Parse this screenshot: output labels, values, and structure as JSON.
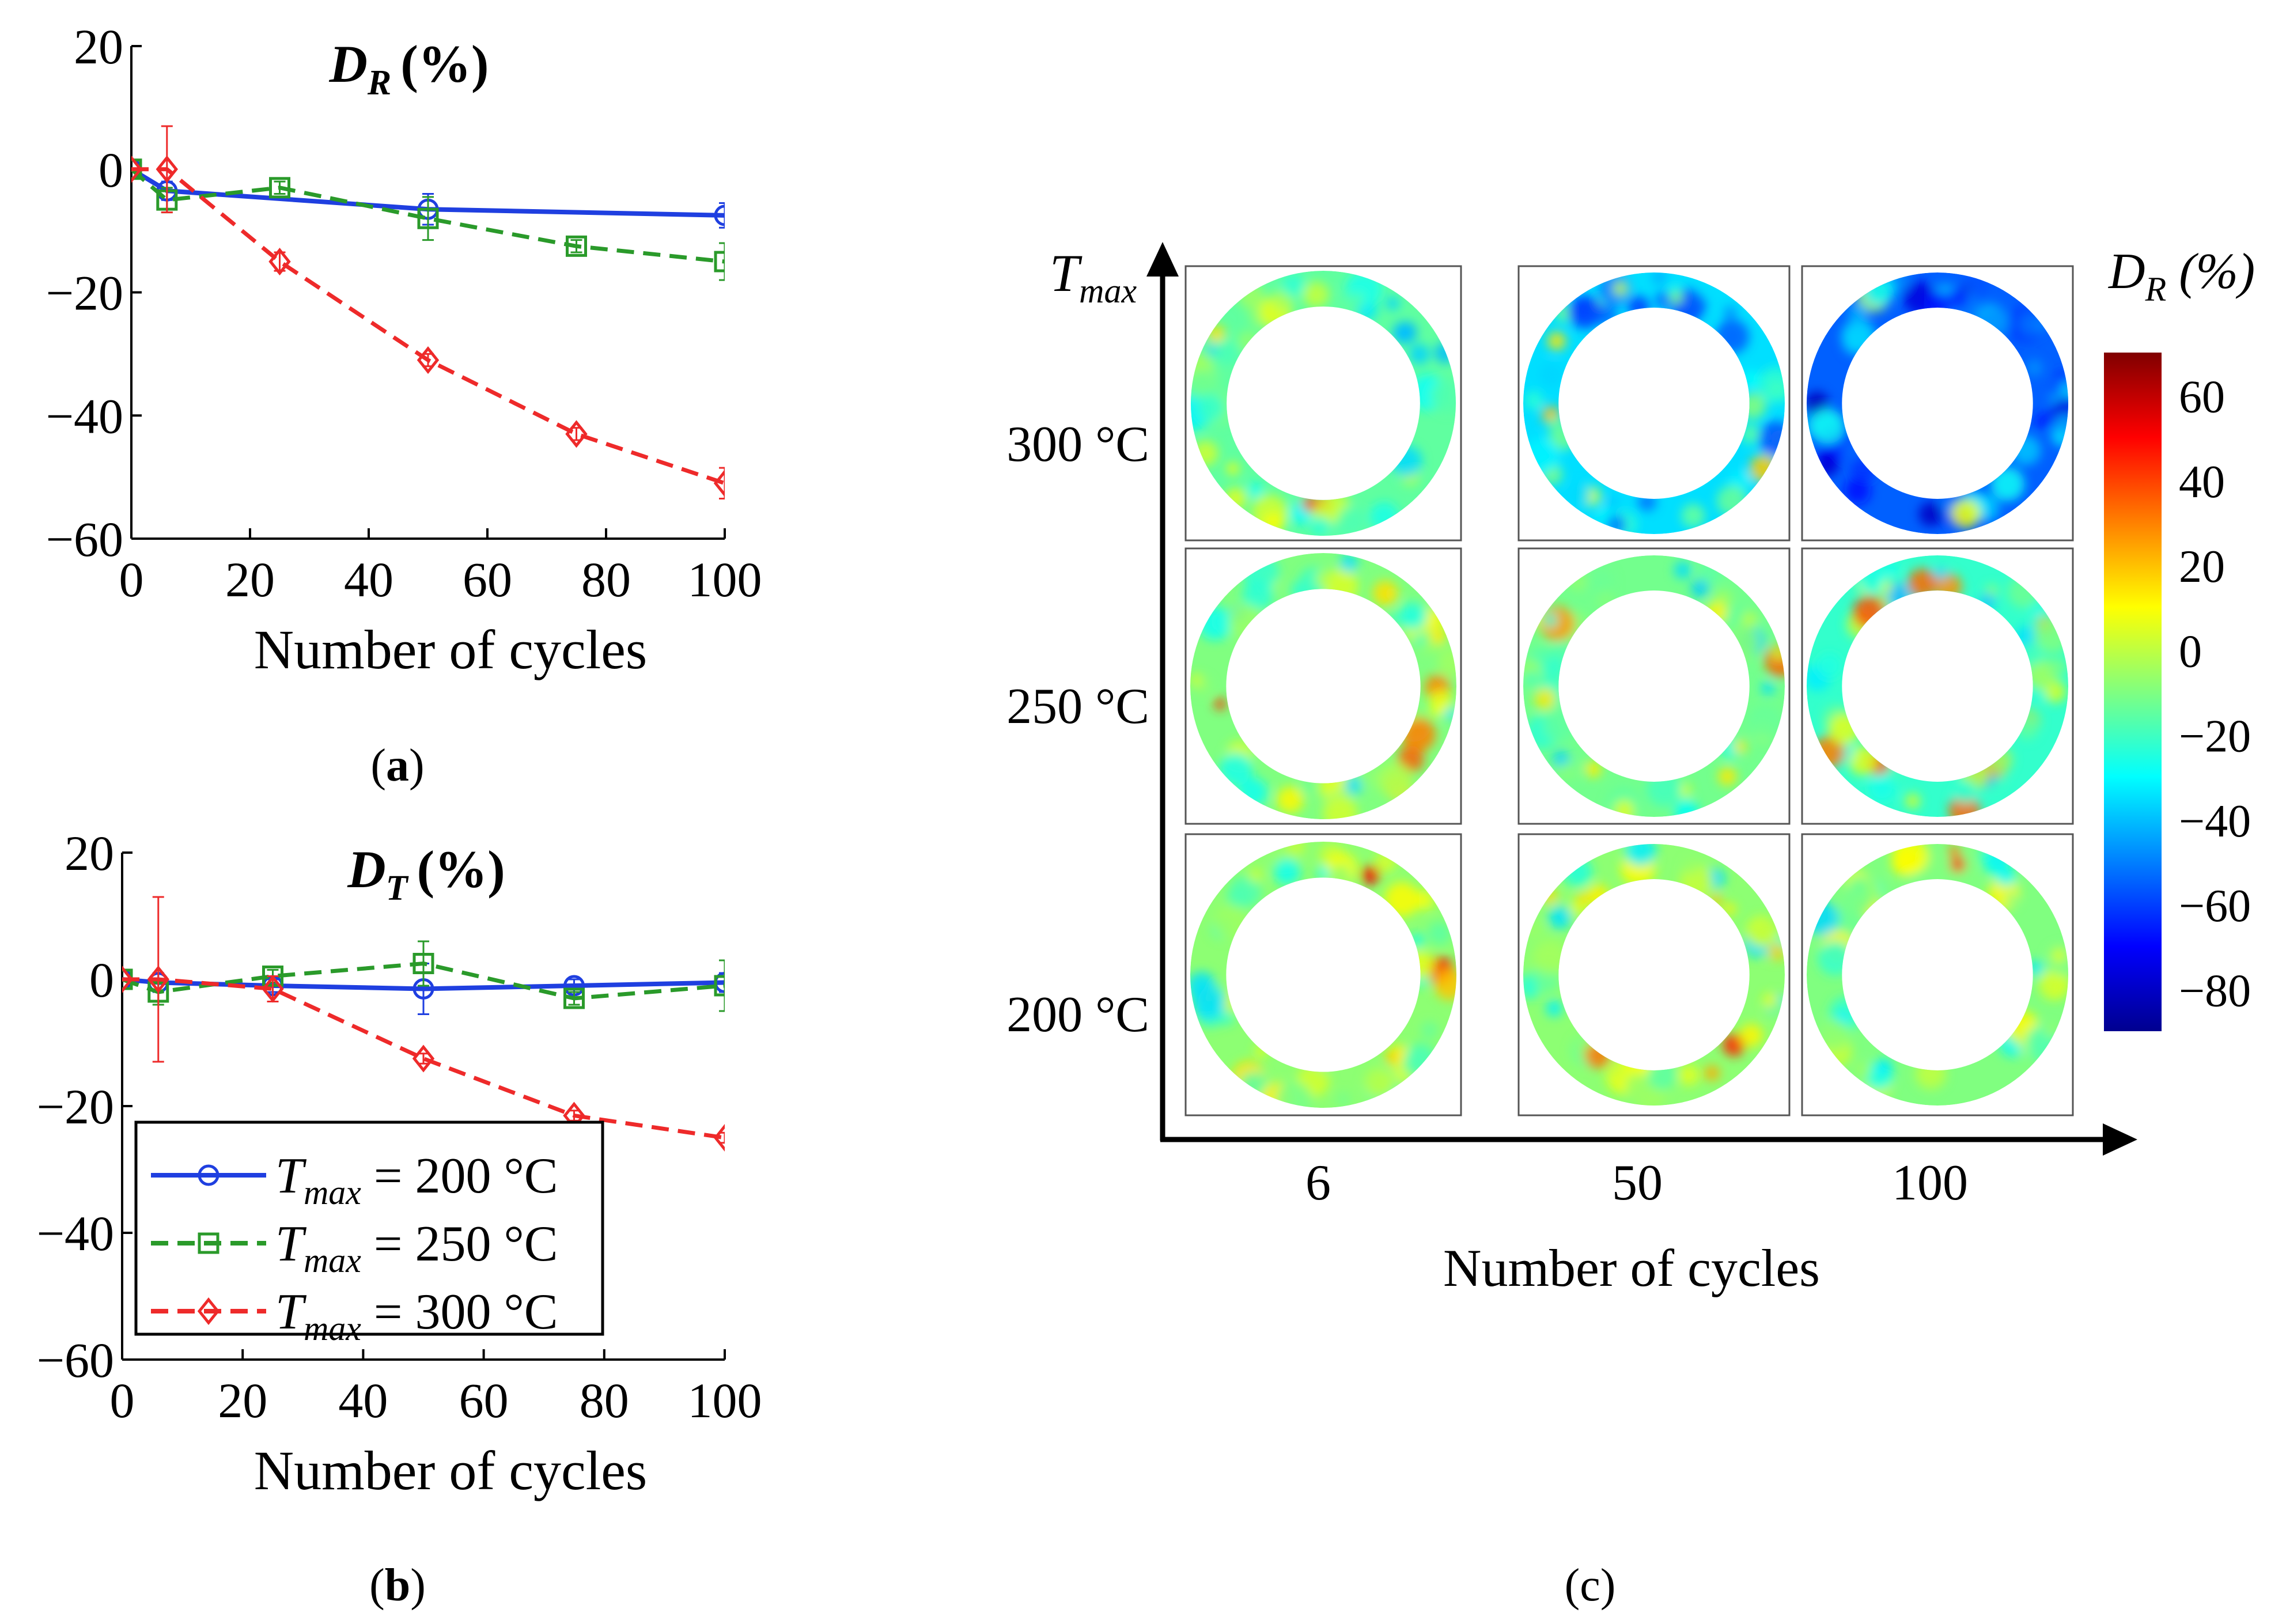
{
  "colors": {
    "series_200": "#1f3fe0",
    "series_250": "#2a9a2a",
    "series_300": "#ee2a2a",
    "axis": "#000000"
  },
  "chart_data": [
    {
      "id": "a",
      "type": "line",
      "title_main": "D",
      "title_sub": "R",
      "title_unit": "(%)",
      "xlabel": "Number of cycles",
      "ylabel": "",
      "xlim": [
        0,
        100
      ],
      "ylim": [
        -60,
        20
      ],
      "xticks": [
        0,
        20,
        40,
        60,
        80,
        100
      ],
      "yticks": [
        20,
        0,
        -20,
        -40,
        -60
      ],
      "ytick_labels": [
        "20",
        "0",
        "−20",
        "−40",
        "−60"
      ],
      "caption": [
        "(",
        "a",
        ")"
      ],
      "series": [
        {
          "name": "T_max = 200 °C",
          "color_key": "series_200",
          "marker": "circle",
          "dash": "solid",
          "x": [
            0,
            6,
            50,
            100
          ],
          "y": [
            0,
            -3.5,
            -6.5,
            -7.5
          ],
          "err": [
            0,
            1.5,
            2.5,
            2
          ]
        },
        {
          "name": "T_max = 250 °C",
          "color_key": "series_250",
          "marker": "square",
          "dash": "dashed",
          "x": [
            0,
            6,
            25,
            50,
            75,
            100
          ],
          "y": [
            0,
            -5,
            -3,
            -8,
            -12.5,
            -15
          ],
          "err": [
            0,
            2,
            1,
            3.5,
            1,
            3
          ]
        },
        {
          "name": "T_max = 300 °C",
          "color_key": "series_300",
          "marker": "diamond",
          "dash": "dashed",
          "x": [
            0,
            6,
            25,
            50,
            75,
            100
          ],
          "y": [
            0,
            0,
            -15,
            -31,
            -43,
            -51
          ],
          "err": [
            0,
            7,
            1.5,
            1,
            1,
            2.5
          ]
        }
      ]
    },
    {
      "id": "b",
      "type": "line",
      "title_main": "D",
      "title_sub": "T",
      "title_unit": "(%)",
      "xlabel": "Number of cycles",
      "ylabel": "",
      "xlim": [
        0,
        100
      ],
      "ylim": [
        -60,
        20
      ],
      "xticks": [
        0,
        20,
        40,
        60,
        80,
        100
      ],
      "yticks": [
        20,
        0,
        -20,
        -40,
        -60
      ],
      "ytick_labels": [
        "20",
        "0",
        "−20",
        "−40",
        "−60"
      ],
      "caption": [
        "(",
        "b",
        ")"
      ],
      "legend": {
        "placement": "lower-left",
        "entries": [
          {
            "prefix": "T",
            "sub": "max",
            "suffix": " = 200 °C",
            "color_key": "series_200",
            "marker": "circle",
            "dash": "solid"
          },
          {
            "prefix": "T",
            "sub": "max",
            "suffix": " = 250 °C",
            "color_key": "series_250",
            "marker": "square",
            "dash": "dashed"
          },
          {
            "prefix": "T",
            "sub": "max",
            "suffix": " = 300 °C",
            "color_key": "series_300",
            "marker": "diamond",
            "dash": "dashed"
          }
        ]
      },
      "series": [
        {
          "name": "T_max = 200 °C",
          "color_key": "series_200",
          "marker": "circle",
          "dash": "solid",
          "x": [
            0,
            6,
            25,
            50,
            75,
            100
          ],
          "y": [
            0,
            -0.5,
            -1,
            -1.5,
            -1,
            -0.5
          ],
          "err": [
            0,
            1.5,
            1,
            4,
            1,
            1.5
          ]
        },
        {
          "name": "T_max = 250 °C",
          "color_key": "series_250",
          "marker": "square",
          "dash": "dashed",
          "x": [
            0,
            6,
            25,
            50,
            75,
            100
          ],
          "y": [
            0,
            -2,
            0.5,
            2.5,
            -3,
            -1
          ],
          "err": [
            0,
            2,
            1,
            3.5,
            1,
            4
          ]
        },
        {
          "name": "T_max = 300 °C",
          "color_key": "series_300",
          "marker": "diamond",
          "dash": "dashed",
          "x": [
            0,
            6,
            25,
            50,
            75,
            100
          ],
          "y": [
            0,
            0,
            -1.5,
            -12.5,
            -21.5,
            -25
          ],
          "err": [
            0,
            13,
            2,
            0.8,
            0.8,
            0.8
          ]
        }
      ]
    },
    {
      "id": "c",
      "type": "heatmap",
      "description": "Nine annular D_R maps on a grid of T_max vs number of cycles",
      "y_axis_label": {
        "main": "T",
        "sub": "max"
      },
      "x_axis_label": "Number of cycles",
      "rows": [
        "300 °C",
        "250 °C",
        "200 °C"
      ],
      "columns": [
        "6",
        "50",
        "100"
      ],
      "cell_mean_values": [
        [
          -15,
          -35,
          -55
        ],
        [
          -10,
          -12,
          -22
        ],
        [
          -8,
          -8,
          -10
        ]
      ],
      "colorbar": {
        "title_main": "D",
        "title_sub": "R",
        "title_unit": " (%)",
        "range": [
          -90,
          70
        ],
        "ticks": [
          60,
          40,
          20,
          0,
          -20,
          -40,
          -60,
          -80
        ],
        "tick_labels": [
          "60",
          "40",
          "20",
          "0",
          "−20",
          "−40",
          "−60",
          "−80"
        ],
        "colormap": [
          "#00008f",
          "#0000ff",
          "#0080ff",
          "#00ffff",
          "#80ff80",
          "#ffff00",
          "#ff8000",
          "#ff0000",
          "#800000"
        ]
      },
      "caption": [
        "(",
        "c",
        ")"
      ]
    }
  ]
}
